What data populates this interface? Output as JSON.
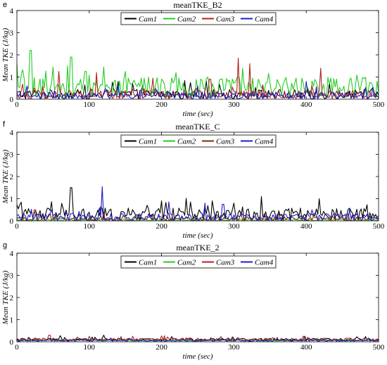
{
  "chart_data": [
    {
      "panel_letter": "e",
      "type": "line",
      "title": "meanTKE_B2",
      "xlabel": "time (sec)",
      "ylabel": "Mean TKE (J/kg)",
      "xlim": [
        0,
        500
      ],
      "ylim": [
        0,
        4
      ],
      "xticks": [
        "0",
        "100",
        "200",
        "300",
        "400",
        "500"
      ],
      "yticks": [
        "0",
        "1",
        "2",
        "3",
        "4"
      ],
      "legend_position": "top-center",
      "grid": false,
      "series": [
        {
          "name": "Cam1",
          "color": "#000000",
          "baseline": 0.22,
          "noise": 0.22,
          "spikes": [
            [
              140,
              0.8
            ],
            [
              240,
              0.75
            ],
            [
              160,
              0.7
            ]
          ]
        },
        {
          "name": "Cam2",
          "color": "#22cc22",
          "baseline": 0.55,
          "noise": 0.45,
          "spikes": [
            [
              19,
              2.2
            ],
            [
              75,
              1.9
            ],
            [
              50,
              1.45
            ],
            [
              120,
              1.45
            ],
            [
              220,
              1.2
            ],
            [
              150,
              1.25
            ],
            [
              95,
              1.25
            ]
          ]
        },
        {
          "name": "Cam3",
          "color": "#b22222",
          "baseline": 0.2,
          "noise": 0.2,
          "spikes": [
            [
              306,
              1.85
            ],
            [
              322,
              1.6
            ],
            [
              420,
              1.4
            ],
            [
              58,
              1.25
            ],
            [
              110,
              1.2
            ],
            [
              188,
              0.95
            ],
            [
              267,
              0.9
            ]
          ]
        },
        {
          "name": "Cam4",
          "color": "#1c1cc8",
          "baseline": 0.15,
          "noise": 0.15,
          "spikes": [
            [
              400,
              0.8
            ],
            [
              140,
              0.6
            ],
            [
              250,
              0.6
            ]
          ]
        }
      ]
    },
    {
      "panel_letter": "f",
      "type": "line",
      "title": "meanTKE_C",
      "xlabel": "time (sec)",
      "ylabel": "Mean TKE (J/kg)",
      "xlim": [
        0,
        500
      ],
      "ylim": [
        0,
        4
      ],
      "xticks": [
        "0",
        "100",
        "200",
        "300",
        "400",
        "500"
      ],
      "yticks": [
        "0",
        "1",
        "2",
        "3",
        "4"
      ],
      "legend_position": "top-center",
      "grid": false,
      "series": [
        {
          "name": "Cam1",
          "color": "#000000",
          "baseline": 0.28,
          "noise": 0.3,
          "spikes": [
            [
              75,
              1.5
            ],
            [
              200,
              0.9
            ],
            [
              240,
              0.85
            ],
            [
              270,
              0.9
            ],
            [
              300,
              0.8
            ],
            [
              180,
              0.7
            ]
          ]
        },
        {
          "name": "Cam2",
          "color": "#22cc22",
          "baseline": 0.03,
          "noise": 0.04,
          "spikes": []
        },
        {
          "name": "Cam3",
          "color": "#8b2500",
          "baseline": 0.1,
          "noise": 0.1,
          "spikes": [
            [
              25,
              0.5
            ],
            [
              120,
              0.4
            ]
          ]
        },
        {
          "name": "Cam4",
          "color": "#1c1cc8",
          "baseline": 0.15,
          "noise": 0.18,
          "spikes": [
            [
              118,
              1.55
            ],
            [
              210,
              0.85
            ],
            [
              260,
              0.8
            ],
            [
              285,
              0.75
            ],
            [
              460,
              0.55
            ]
          ]
        }
      ]
    },
    {
      "panel_letter": "g",
      "type": "line",
      "title": "meanTKE_2",
      "xlabel": "time (sec)",
      "ylabel": "Mean TKE (J/kg)",
      "xlim": [
        0,
        500
      ],
      "ylim": [
        0,
        4
      ],
      "xticks": [
        "0",
        "100",
        "200",
        "300",
        "400",
        "500"
      ],
      "yticks": [
        "0",
        "1",
        "2",
        "3",
        "4"
      ],
      "legend_position": "top-center",
      "grid": false,
      "series": [
        {
          "name": "Cam1",
          "color": "#000000",
          "baseline": 0.1,
          "noise": 0.06,
          "spikes": [
            [
              60,
              0.28
            ],
            [
              120,
              0.3
            ]
          ]
        },
        {
          "name": "Cam2",
          "color": "#22cc22",
          "baseline": 0.06,
          "noise": 0.03,
          "spikes": []
        },
        {
          "name": "Cam3",
          "color": "#b22222",
          "baseline": 0.1,
          "noise": 0.07,
          "spikes": [
            [
              45,
              0.3
            ],
            [
              100,
              0.25
            ],
            [
              160,
              0.25
            ]
          ]
        },
        {
          "name": "Cam4",
          "color": "#1c1cc8",
          "baseline": 0.06,
          "noise": 0.04,
          "spikes": []
        }
      ]
    }
  ]
}
